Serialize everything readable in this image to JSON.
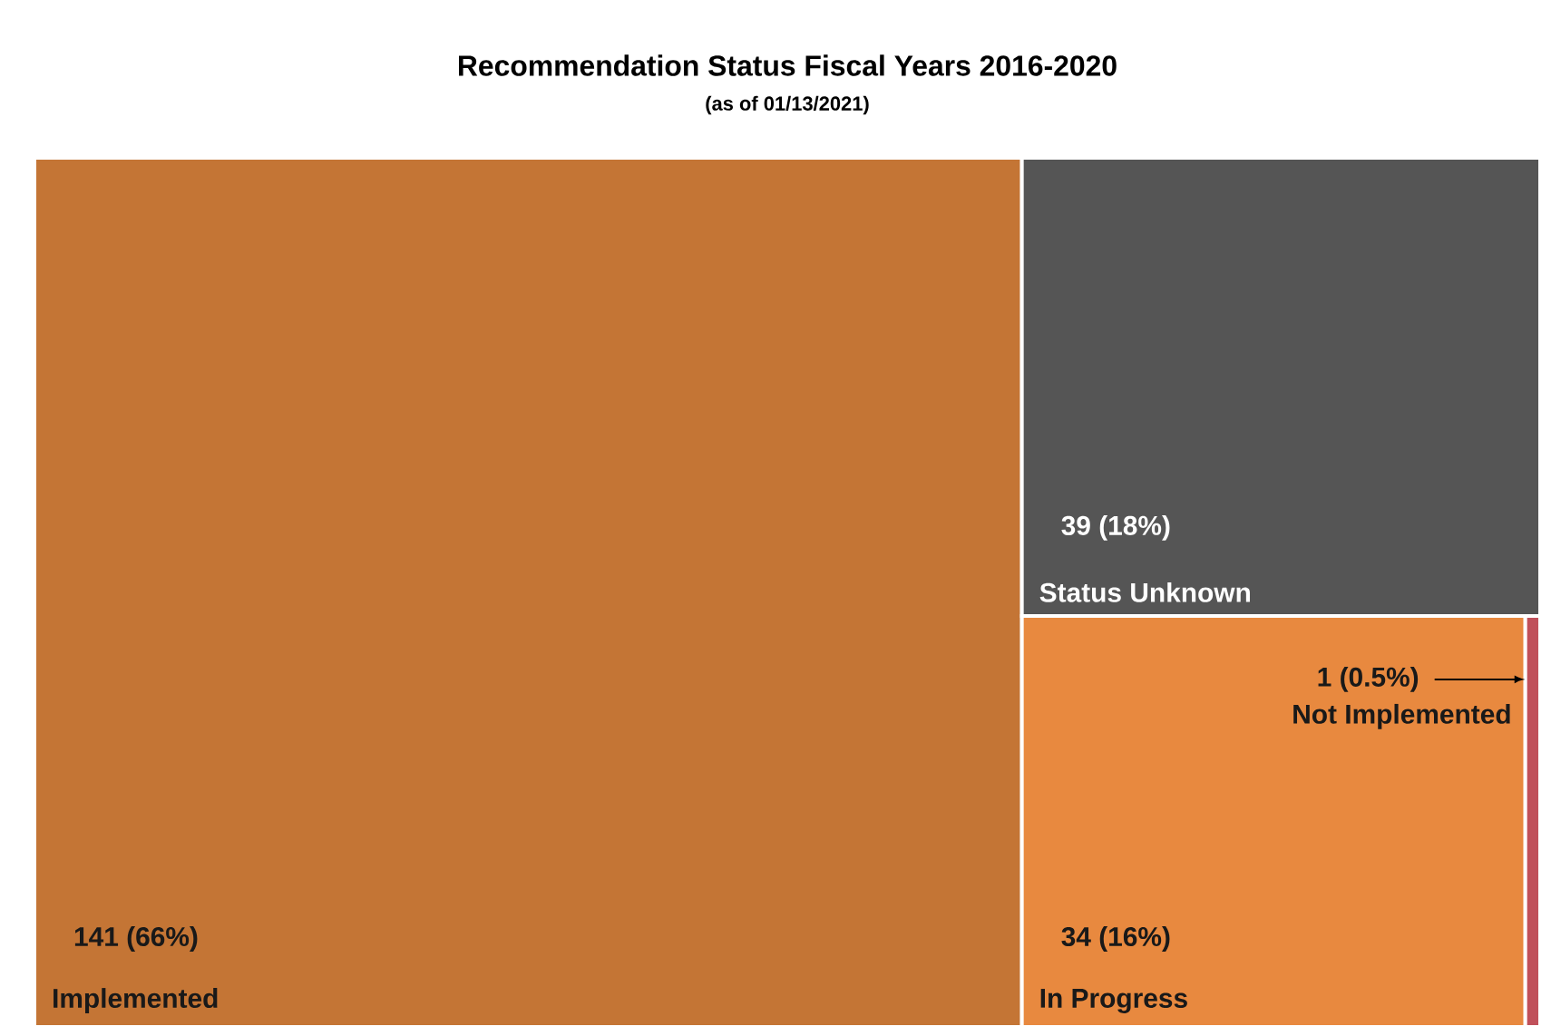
{
  "chart_data": {
    "type": "other",
    "title": "Recommendation Status Fiscal Years 2016-2020",
    "subtitle": "(as of 01/13/2021)",
    "categories": [
      "Implemented",
      "Status Unknown",
      "In Progress",
      "Not Implemented"
    ],
    "values": [
      141,
      39,
      34,
      1
    ],
    "value_labels": [
      "141 (66%)",
      "39 (18%)",
      "34 (16%)",
      "1 (0.5%)"
    ],
    "colors": [
      "#c47535",
      "#555555",
      "#e8893f",
      "#c0505a"
    ]
  }
}
